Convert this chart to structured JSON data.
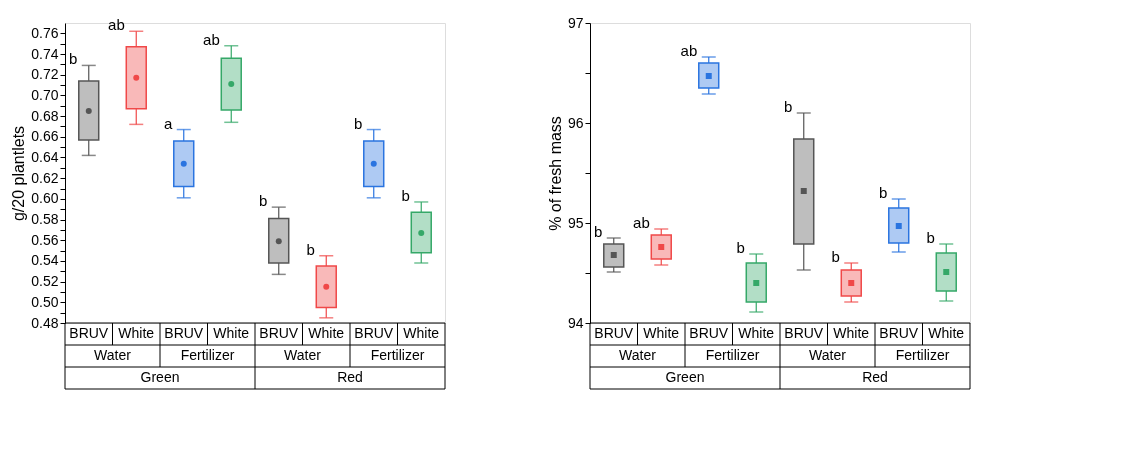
{
  "chart_data": [
    {
      "type": "box",
      "ylabel": "g/20 plantlets",
      "categories": [
        "BRUV",
        "White",
        "BRUV",
        "White",
        "BRUV",
        "White",
        "BRUV",
        "White"
      ],
      "colors": [
        "#555555",
        "#f04848",
        "#2a74e0",
        "#35a868",
        "#555555",
        "#f04848",
        "#2a74e0",
        "#35a868"
      ],
      "boxes": [
        {
          "low": 0.642,
          "q1": 0.657,
          "q3": 0.714,
          "high": 0.729,
          "mean": 0.685
        },
        {
          "low": 0.672,
          "q1": 0.687,
          "q3": 0.747,
          "high": 0.762,
          "mean": 0.717
        },
        {
          "low": 0.601,
          "q1": 0.612,
          "q3": 0.656,
          "high": 0.667,
          "mean": 0.634
        },
        {
          "low": 0.674,
          "q1": 0.686,
          "q3": 0.736,
          "high": 0.748,
          "mean": 0.711
        },
        {
          "low": 0.527,
          "q1": 0.538,
          "q3": 0.581,
          "high": 0.592,
          "mean": 0.559
        },
        {
          "low": 0.485,
          "q1": 0.495,
          "q3": 0.535,
          "high": 0.545,
          "mean": 0.515
        },
        {
          "low": 0.601,
          "q1": 0.612,
          "q3": 0.656,
          "high": 0.667,
          "mean": 0.634
        },
        {
          "low": 0.538,
          "q1": 0.548,
          "q3": 0.587,
          "high": 0.597,
          "mean": 0.567
        }
      ],
      "ylim": [
        0.48,
        0.77
      ],
      "yticks": [
        0.48,
        {
          "value": 0.49,
          "label": null
        },
        {
          "value": 0.5,
          "label": "0.50"
        },
        {
          "value": 0.51,
          "label": null
        },
        0.52,
        {
          "value": 0.53,
          "label": null
        },
        0.54,
        {
          "value": 0.55,
          "label": null
        },
        0.56,
        {
          "value": 0.57,
          "label": null
        },
        0.58,
        {
          "value": 0.59,
          "label": null
        },
        {
          "value": 0.6,
          "label": "0.60"
        },
        {
          "value": 0.61,
          "label": null
        },
        0.62,
        {
          "value": 0.63,
          "label": null
        },
        0.64,
        {
          "value": 0.65,
          "label": null
        },
        0.66,
        {
          "value": 0.67,
          "label": null
        },
        0.68,
        {
          "value": 0.69,
          "label": null
        },
        {
          "value": 0.7,
          "label": "0.70"
        },
        {
          "value": 0.71,
          "label": null
        },
        0.72,
        {
          "value": 0.73,
          "label": null
        },
        0.74,
        {
          "value": 0.75,
          "label": null
        },
        0.76
      ],
      "grid": false,
      "legend": false,
      "marker": "circle",
      "annotations": [
        "b",
        "ab",
        "a",
        "ab",
        "b",
        "b",
        "b",
        "b",
        "Water",
        "Fertilizer",
        "Water",
        "Fertilizer",
        "Green",
        "Red"
      ]
    },
    {
      "type": "box",
      "ylabel": "% of fresh mass",
      "categories": [
        "BRUV",
        "White",
        "BRUV",
        "White",
        "BRUV",
        "White",
        "BRUV",
        "White"
      ],
      "colors": [
        "#555555",
        "#f04848",
        "#2a74e0",
        "#35a868",
        "#555555",
        "#f04848",
        "#2a74e0",
        "#35a868"
      ],
      "boxes": [
        {
          "low": 94.51,
          "q1": 94.56,
          "q3": 94.79,
          "high": 94.85,
          "mean": 94.68
        },
        {
          "low": 94.58,
          "q1": 94.64,
          "q3": 94.88,
          "high": 94.94,
          "mean": 94.76
        },
        {
          "low": 96.29,
          "q1": 96.35,
          "q3": 96.6,
          "high": 96.66,
          "mean": 96.47
        },
        {
          "low": 94.11,
          "q1": 94.21,
          "q3": 94.6,
          "high": 94.69,
          "mean": 94.4
        },
        {
          "low": 94.53,
          "q1": 94.79,
          "q3": 95.84,
          "high": 96.1,
          "mean": 95.32
        },
        {
          "low": 94.21,
          "q1": 94.27,
          "q3": 94.53,
          "high": 94.6,
          "mean": 94.4
        },
        {
          "low": 94.71,
          "q1": 94.8,
          "q3": 95.15,
          "high": 95.24,
          "mean": 94.97
        },
        {
          "low": 94.22,
          "q1": 94.32,
          "q3": 94.7,
          "high": 94.79,
          "mean": 94.51
        }
      ],
      "ylim": [
        94,
        97
      ],
      "yticks": [
        94,
        {
          "value": 94.5,
          "label": null
        },
        95,
        {
          "value": 95.5,
          "label": null
        },
        96,
        {
          "value": 96.5,
          "label": null
        },
        97
      ],
      "grid": false,
      "legend": false,
      "marker": "square",
      "annotations": [
        "b",
        "ab",
        "ab",
        "b",
        "b",
        "b",
        "b",
        "b",
        "Water",
        "Fertilizer",
        "Water",
        "Fertilizer",
        "Green",
        "Red"
      ]
    }
  ]
}
